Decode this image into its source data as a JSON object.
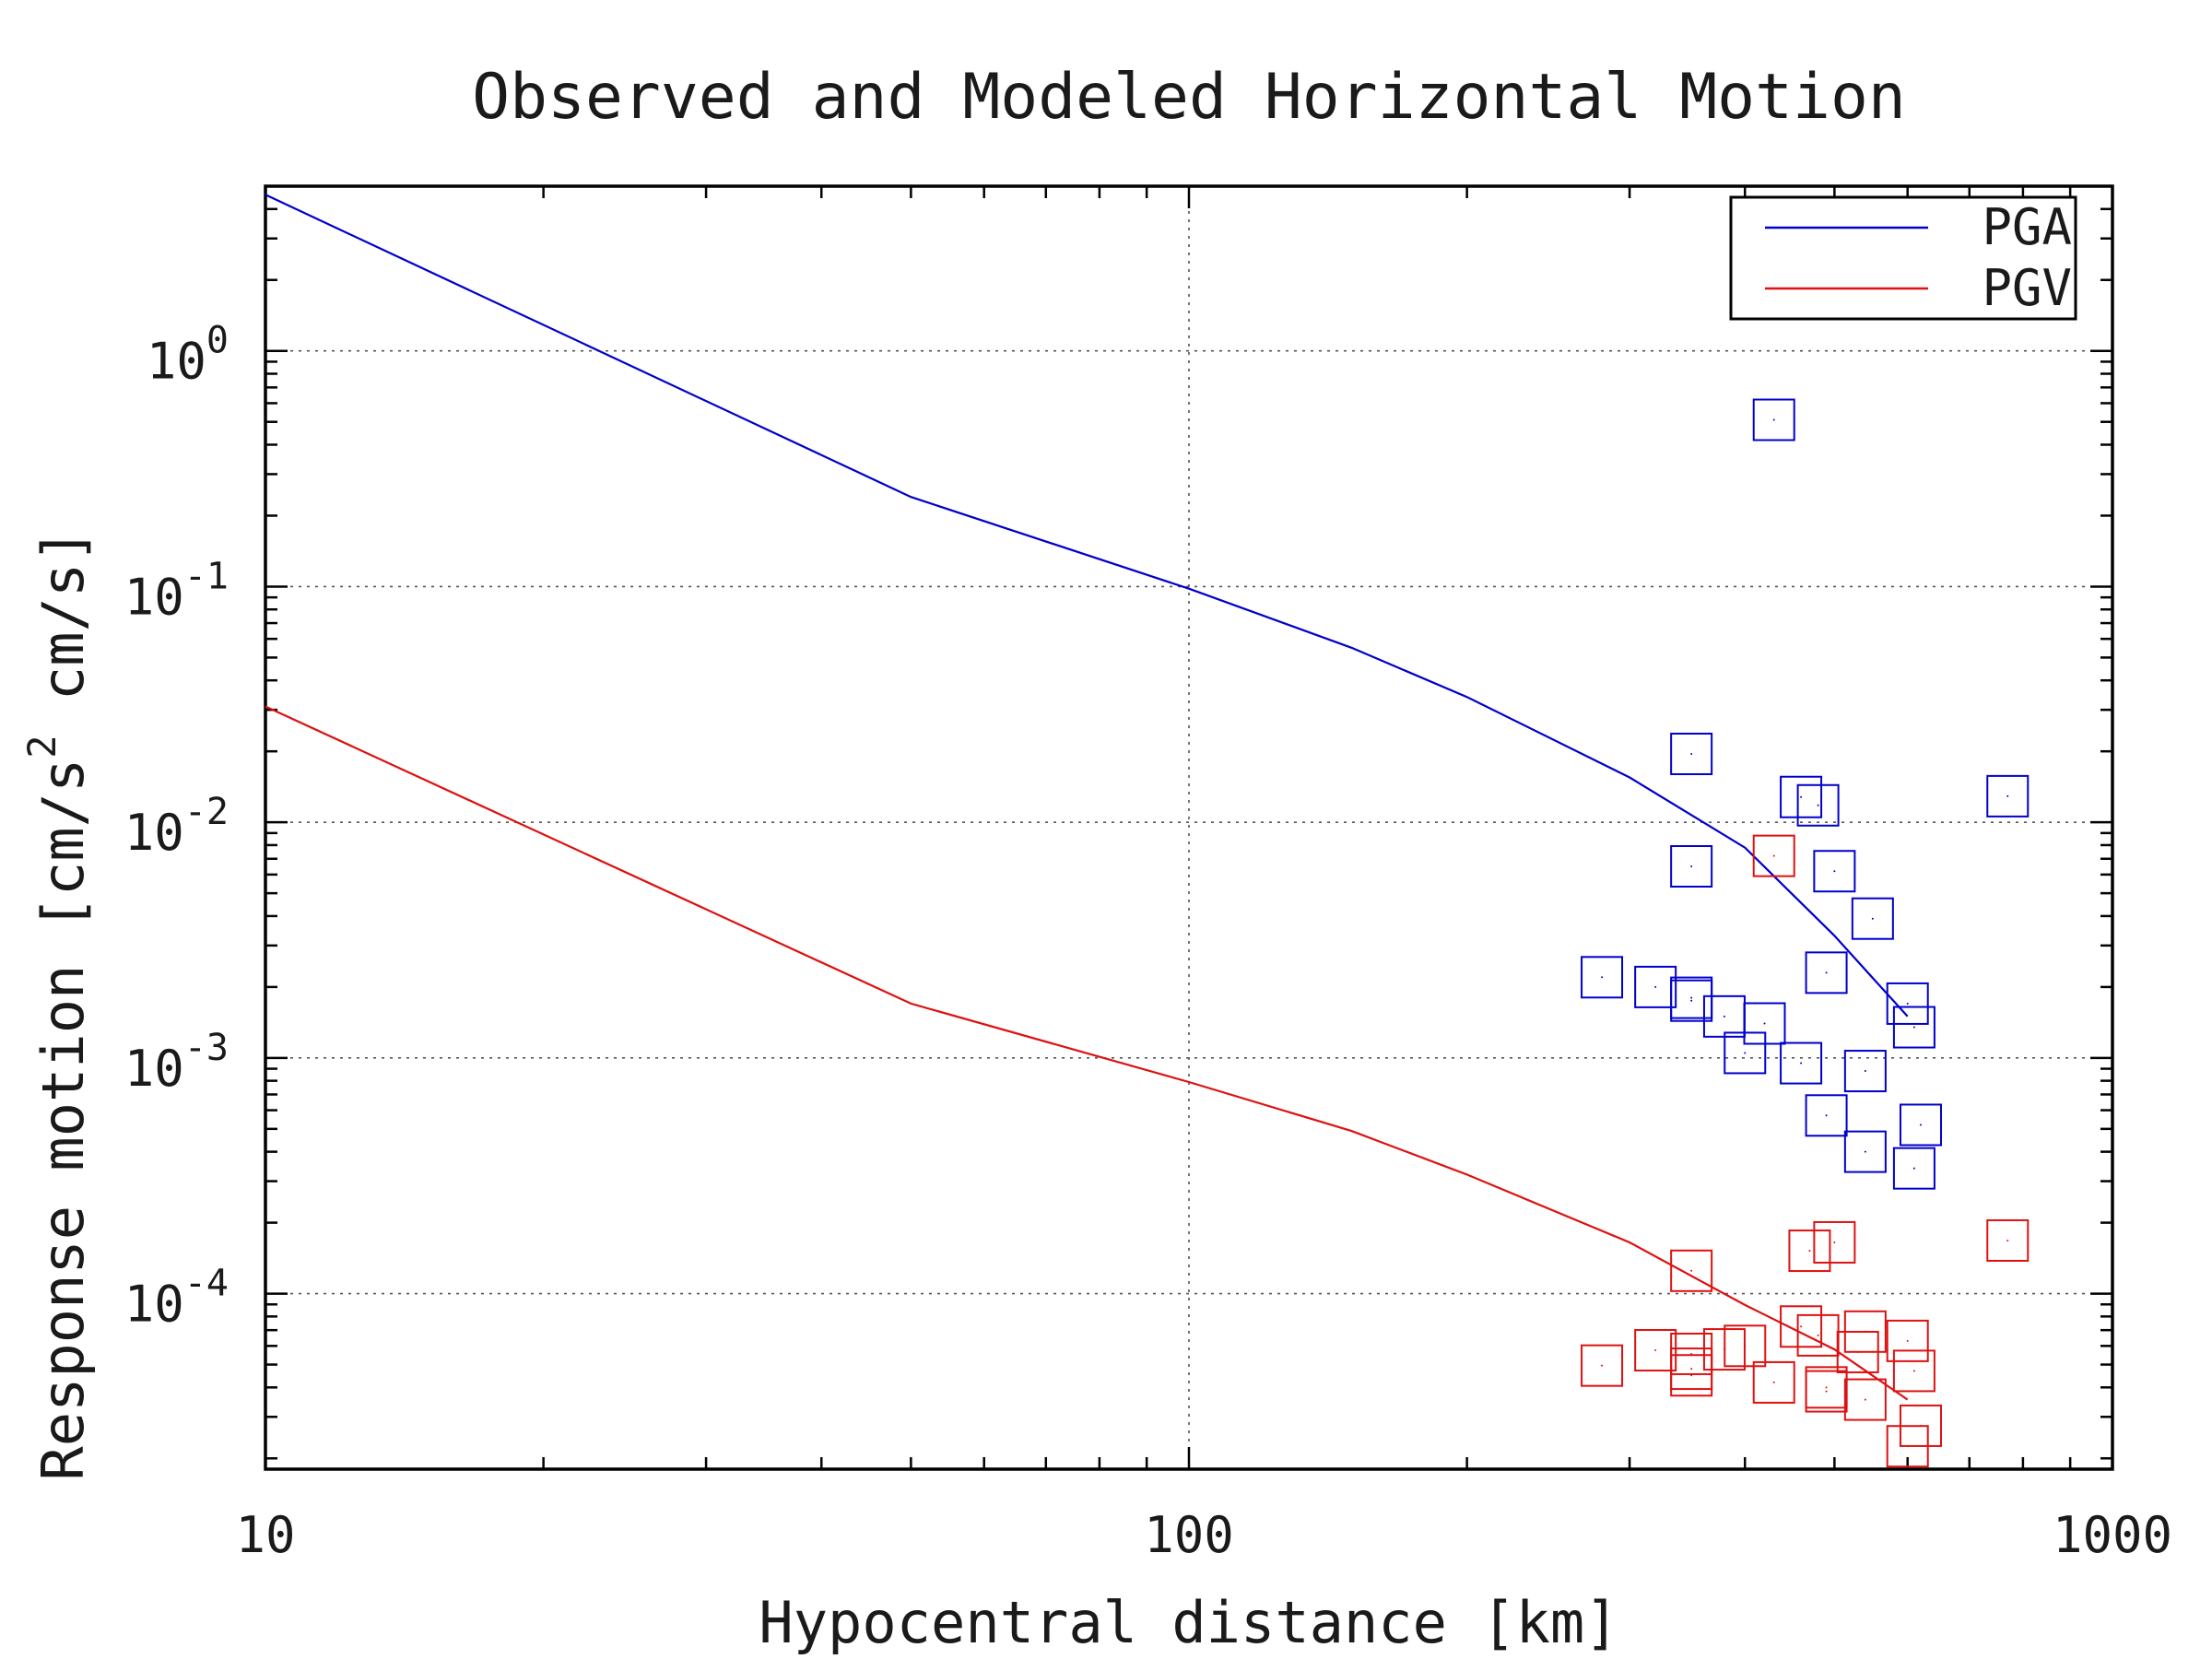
{
  "chart_data": {
    "type": "scatter",
    "title": "Observed and Modeled Horizontal Motion",
    "xlabel": "Hypocentral distance [km]",
    "ylabel": {
      "pre": "Response motion  [cm/s",
      "sup": "2",
      "post": "  cm/s]"
    },
    "x_scale": "log",
    "y_scale": "log",
    "xlim": [
      10,
      1000
    ],
    "ylim": [
      1.8e-05,
      5.0
    ],
    "x_ticks": [
      {
        "value": 10,
        "label": "10"
      },
      {
        "value": 100,
        "label": "100"
      },
      {
        "value": 1000,
        "label": "1000"
      }
    ],
    "y_ticks": [
      {
        "value": 1,
        "base": "10",
        "exp": "0"
      },
      {
        "value": 0.1,
        "base": "10",
        "exp": "-1"
      },
      {
        "value": 0.01,
        "base": "10",
        "exp": "-2"
      },
      {
        "value": 0.001,
        "base": "10",
        "exp": "-3"
      },
      {
        "value": 0.0001,
        "base": "10",
        "exp": "-4"
      }
    ],
    "grid": true,
    "legend_position": "top-right",
    "series": [
      {
        "name": "PGA",
        "color": "#0000cc",
        "model": [
          [
            10,
            4.6
          ],
          [
            50,
            0.24
          ],
          [
            100,
            0.098
          ],
          [
            150,
            0.055
          ],
          [
            200,
            0.034
          ],
          [
            300,
            0.0155
          ],
          [
            400,
            0.0078
          ],
          [
            500,
            0.0033
          ],
          [
            600,
            0.0015
          ]
        ],
        "observed": [
          [
            430,
            0.51
          ],
          [
            350,
            0.0195
          ],
          [
            460,
            0.0128
          ],
          [
            480,
            0.0118
          ],
          [
            770,
            0.0129
          ],
          [
            350,
            0.0065
          ],
          [
            500,
            0.0062
          ],
          [
            550,
            0.0039
          ],
          [
            280,
            0.0022
          ],
          [
            490,
            0.0023
          ],
          [
            320,
            0.002
          ],
          [
            350,
            0.0018
          ],
          [
            350,
            0.00175
          ],
          [
            380,
            0.0015
          ],
          [
            420,
            0.0014
          ],
          [
            600,
            0.0017
          ],
          [
            610,
            0.00135
          ],
          [
            400,
            0.00105
          ],
          [
            460,
            0.00095
          ],
          [
            540,
            0.00088
          ],
          [
            490,
            0.00057
          ],
          [
            620,
            0.00052
          ],
          [
            540,
            0.0004
          ],
          [
            610,
            0.00034
          ]
        ]
      },
      {
        "name": "PGV",
        "color": "#dd1111",
        "model": [
          [
            10,
            0.031
          ],
          [
            50,
            0.0017
          ],
          [
            100,
            0.00079
          ],
          [
            150,
            0.00049
          ],
          [
            200,
            0.00032
          ],
          [
            300,
            0.000165
          ],
          [
            400,
            8.95e-05
          ],
          [
            500,
            5.8e-05
          ],
          [
            600,
            3.55e-05
          ]
        ],
        "observed": [
          [
            430,
            0.0072
          ],
          [
            350,
            0.000125
          ],
          [
            470,
            0.000152
          ],
          [
            500,
            0.000165
          ],
          [
            770,
            0.000168
          ],
          [
            460,
            7.25e-05
          ],
          [
            480,
            6.65e-05
          ],
          [
            540,
            6.9e-05
          ],
          [
            600,
            6.3e-05
          ],
          [
            320,
            5.75e-05
          ],
          [
            350,
            5.55e-05
          ],
          [
            380,
            5.8e-05
          ],
          [
            400,
            6e-05
          ],
          [
            530,
            5.65e-05
          ],
          [
            280,
            4.95e-05
          ],
          [
            350,
            4.8e-05
          ],
          [
            350,
            4.5e-05
          ],
          [
            610,
            4.7e-05
          ],
          [
            430,
            4.2e-05
          ],
          [
            490,
            4e-05
          ],
          [
            490,
            3.85e-05
          ],
          [
            540,
            3.55e-05
          ],
          [
            620,
            2.75e-05
          ],
          [
            600,
            2.25e-05
          ]
        ]
      }
    ]
  }
}
